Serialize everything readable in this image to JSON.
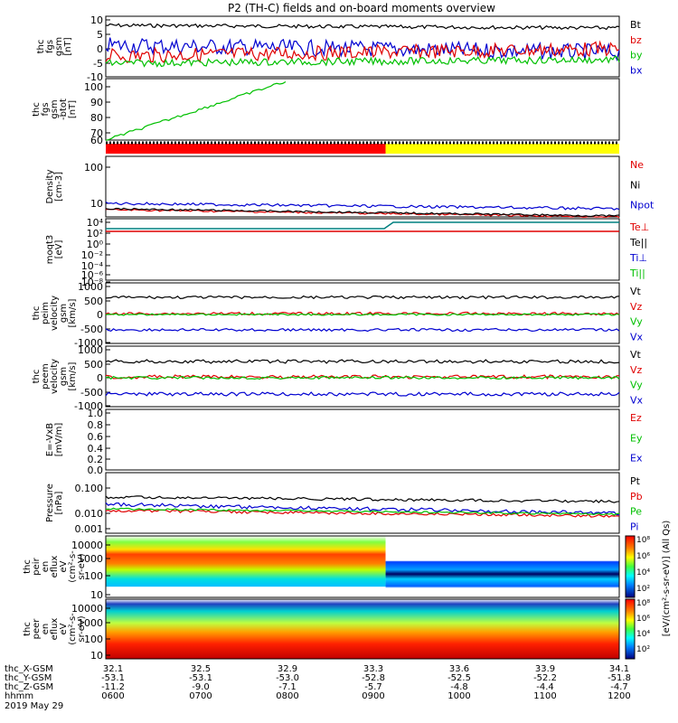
{
  "title": "P2 (TH-C) fields and on-board moments overview",
  "panels": [
    {
      "id": "fgs",
      "ylabel": [
        "thc",
        "fgs",
        "gsm",
        "[nT]"
      ],
      "yticks": [
        "10",
        "5",
        "0",
        "-5",
        "-10"
      ],
      "legend": [
        {
          "t": "Bt",
          "c": "#000000"
        },
        {
          "t": "bz",
          "c": "#e00000"
        },
        {
          "t": "by",
          "c": "#00c000"
        },
        {
          "t": "bx",
          "c": "#0000d0"
        }
      ]
    },
    {
      "id": "fgs_btot",
      "ylabel": [
        "thc",
        "fgs",
        "gsm",
        "-btot",
        "[nT]"
      ],
      "yticks": [
        "100",
        "90",
        "80",
        "70",
        "60",
        "50"
      ],
      "legend": []
    },
    {
      "id": "mode",
      "ylabel": [],
      "yticks": [],
      "legend": []
    },
    {
      "id": "density",
      "ylabel": [
        "Density",
        "[cm-3]"
      ],
      "yticks": [
        "100",
        "10"
      ],
      "legend": [
        {
          "t": "Ne",
          "c": "#e00000"
        },
        {
          "t": "Ni",
          "c": "#000000"
        },
        {
          "t": "Npot",
          "c": "#0000d0"
        }
      ]
    },
    {
      "id": "temp",
      "ylabel": [
        "moqt3",
        "[eV]"
      ],
      "yticks": [
        "10⁴",
        "10²",
        "10⁰",
        "10⁻²",
        "10⁻⁴",
        "10⁻⁶",
        "10⁻⁸"
      ],
      "legend": [
        {
          "t": "Te⊥",
          "c": "#e00000"
        },
        {
          "t": "Te||",
          "c": "#000000"
        },
        {
          "t": "Ti⊥",
          "c": "#0000d0"
        },
        {
          "t": "Ti||",
          "c": "#00c000"
        }
      ]
    },
    {
      "id": "peim",
      "ylabel": [
        "thc",
        "peim",
        "velocity",
        "gsm",
        "[km/s]"
      ],
      "yticks": [
        "1000",
        "500",
        "0",
        "-500",
        "-1000"
      ],
      "legend": [
        {
          "t": "Vt",
          "c": "#000000"
        },
        {
          "t": "Vz",
          "c": "#e00000"
        },
        {
          "t": "Vy",
          "c": "#00c000"
        },
        {
          "t": "Vx",
          "c": "#0000d0"
        }
      ]
    },
    {
      "id": "peem",
      "ylabel": [
        "thc",
        "peem",
        "velocity",
        "gsm",
        "[km/s]"
      ],
      "yticks": [
        "1000",
        "500",
        "0",
        "-500",
        "-1000"
      ],
      "legend": [
        {
          "t": "Vt",
          "c": "#000000"
        },
        {
          "t": "Vz",
          "c": "#e00000"
        },
        {
          "t": "Vy",
          "c": "#00c000"
        },
        {
          "t": "Vx",
          "c": "#0000d0"
        }
      ]
    },
    {
      "id": "efield",
      "ylabel": [
        "E=-VxB",
        "[mV/m]"
      ],
      "yticks": [
        "1.0",
        "0.8",
        "0.6",
        "0.4",
        "0.2",
        "0.0"
      ],
      "legend": [
        {
          "t": "Ez",
          "c": "#e00000"
        },
        {
          "t": "Ey",
          "c": "#00c000"
        },
        {
          "t": "Ex",
          "c": "#0000d0"
        }
      ]
    },
    {
      "id": "pressure",
      "ylabel": [
        "Pressure",
        "[nPa]"
      ],
      "yticks": [
        "0.100",
        "0.010",
        "0.001"
      ],
      "legend": [
        {
          "t": "Pt",
          "c": "#000000"
        },
        {
          "t": "Pb",
          "c": "#e00000"
        },
        {
          "t": "Pe",
          "c": "#00c000"
        },
        {
          "t": "Pi",
          "c": "#0000d0"
        }
      ]
    },
    {
      "id": "peir",
      "ylabel": [
        "thc",
        "peir",
        "en",
        "eflux",
        "eV",
        "(cm²-s-",
        "sr-eV)"
      ],
      "yticks": [
        "10000",
        "1000",
        "100",
        "10"
      ],
      "legend": []
    },
    {
      "id": "peer",
      "ylabel": [
        "thc",
        "peer",
        "en",
        "eflux",
        "eV",
        "(cm²-s-",
        "sr-eV)"
      ],
      "yticks": [
        "10000",
        "1000",
        "100",
        "10"
      ],
      "legend": []
    }
  ],
  "colorbar": {
    "labels": [
      "10⁸",
      "10⁶",
      "10⁴",
      "10²",
      "10⁸",
      "10⁶",
      "10⁴",
      "10²"
    ],
    "title": "[eV/(cm²-s-sr-eV)] (All Qs)"
  },
  "xaxis": {
    "rows": [
      {
        "label": "thc_X-GSM",
        "values": [
          "32.1",
          "32.5",
          "32.9",
          "33.3",
          "33.6",
          "33.9",
          "34.1"
        ]
      },
      {
        "label": "thc_Y-GSM",
        "values": [
          "-53.1",
          "-53.1",
          "-53.0",
          "-52.8",
          "-52.5",
          "-52.2",
          "-51.8"
        ]
      },
      {
        "label": "thc_Z-GSM",
        "values": [
          "-11.2",
          "-9.0",
          "-7.1",
          "-5.7",
          "-4.8",
          "-4.4",
          "-4.7"
        ]
      },
      {
        "label": "hhmm",
        "values": [
          "0600",
          "0700",
          "0800",
          "0900",
          "1000",
          "1100",
          "1200"
        ]
      }
    ],
    "date": "2019 May 29"
  },
  "chart_data": [
    {
      "type": "line",
      "title": "P2 (TH-C) fields and on-board moments overview",
      "ylabel": "thc fgs gsm [nT]",
      "ylim": [
        -10,
        10
      ],
      "x": [
        "0600",
        "0700",
        "0800",
        "0900",
        "1000",
        "1100",
        "1200"
      ],
      "series": [
        {
          "name": "Bt",
          "values": [
            8,
            8,
            7,
            7,
            6,
            5,
            5
          ]
        },
        {
          "name": "bz",
          "values": [
            -3,
            5,
            3,
            0,
            -1,
            -2,
            -2
          ]
        },
        {
          "name": "by",
          "values": [
            -5,
            -4,
            -4,
            -3,
            -3,
            -2,
            -2
          ]
        },
        {
          "name": "bx",
          "values": [
            3,
            4,
            3,
            2,
            0,
            -1,
            0
          ]
        }
      ]
    },
    {
      "type": "line",
      "ylabel": "thc fgs gsm -btot [nT]",
      "ylim": [
        40,
        105
      ],
      "x": [
        "0600",
        "0630",
        "0700",
        "0730",
        "0800"
      ],
      "series": [
        {
          "values": [
            42,
            55,
            68,
            82,
            100
          ]
        }
      ]
    },
    {
      "type": "line",
      "ylabel": "Density [cm-3]",
      "ylim": [
        2,
        300
      ],
      "x": [
        "0600",
        "0700",
        "0800",
        "0900",
        "1000",
        "1100",
        "1200"
      ],
      "series": [
        {
          "name": "Ne",
          "values": [
            6.5,
            6,
            5.5,
            5,
            5,
            4,
            4
          ]
        },
        {
          "name": "Ni",
          "values": [
            6.5,
            6,
            6,
            5,
            4.5,
            4,
            4
          ]
        },
        {
          "name": "Npot",
          "values": [
            8.5,
            8,
            7.5,
            7,
            6.5,
            6,
            6
          ]
        }
      ]
    },
    {
      "type": "line",
      "ylabel": "moqt3 [eV]",
      "x": [
        "0600",
        "0700",
        "0800",
        "0900",
        "1000",
        "1100",
        "1200"
      ],
      "series": [
        {
          "name": "Te⊥",
          "values": [
            300,
            300,
            300,
            300,
            300,
            300,
            300
          ]
        },
        {
          "name": "Ti⊥",
          "values": [
            3000,
            3000,
            3000,
            3000,
            10000,
            10000,
            10000
          ]
        }
      ]
    },
    {
      "type": "line",
      "ylabel": "thc peim velocity gsm [km/s]",
      "ylim": [
        -1000,
        1000
      ],
      "x": [
        "0600",
        "0700",
        "0800",
        "0900",
        "1000",
        "1100",
        "1200"
      ],
      "series": [
        {
          "name": "Vt",
          "values": [
            500,
            500,
            500,
            500,
            500,
            500,
            500
          ]
        },
        {
          "name": "Vz",
          "values": [
            0,
            0,
            0,
            0,
            0,
            0,
            0
          ]
        },
        {
          "name": "Vy",
          "values": [
            0,
            0,
            0,
            0,
            0,
            0,
            0
          ]
        },
        {
          "name": "Vx",
          "values": [
            -500,
            -500,
            -500,
            -500,
            -500,
            -500,
            -500
          ]
        }
      ]
    },
    {
      "type": "line",
      "ylabel": "thc peem velocity gsm [km/s]",
      "ylim": [
        -1000,
        1000
      ],
      "x": [
        "0600",
        "0700",
        "0800",
        "0900",
        "1000",
        "1100",
        "1200"
      ],
      "series": [
        {
          "name": "Vt",
          "values": [
            550,
            550,
            550,
            550,
            550,
            550,
            550
          ]
        },
        {
          "name": "Vz",
          "values": [
            0,
            0,
            0,
            0,
            0,
            0,
            0
          ]
        },
        {
          "name": "Vy",
          "values": [
            0,
            0,
            0,
            0,
            0,
            0,
            0
          ]
        },
        {
          "name": "Vx",
          "values": [
            -550,
            -550,
            -550,
            -550,
            -550,
            -550,
            -550
          ]
        }
      ]
    },
    {
      "type": "line",
      "ylabel": "Pressure [nPa]",
      "x": [
        "0600",
        "0700",
        "0800",
        "0900",
        "1000",
        "1100",
        "1200"
      ],
      "series": [
        {
          "name": "Pt",
          "values": [
            0.06,
            0.055,
            0.05,
            0.05,
            0.045,
            0.04,
            0.04
          ]
        },
        {
          "name": "Pb",
          "values": [
            0.02,
            0.02,
            0.018,
            0.016,
            0.015,
            0.013,
            0.012
          ]
        },
        {
          "name": "Pe",
          "values": [
            0.016,
            0.015,
            0.014,
            0.012,
            0.011,
            0.01,
            0.01
          ]
        },
        {
          "name": "Pi",
          "values": [
            0.03,
            0.03,
            0.028,
            0.025,
            0.025,
            0.02,
            0.02
          ]
        }
      ]
    },
    {
      "type": "heatmap",
      "ylabel": "thc peir en eflux eV"
    },
    {
      "type": "heatmap",
      "ylabel": "thc peer en eflux eV"
    }
  ]
}
